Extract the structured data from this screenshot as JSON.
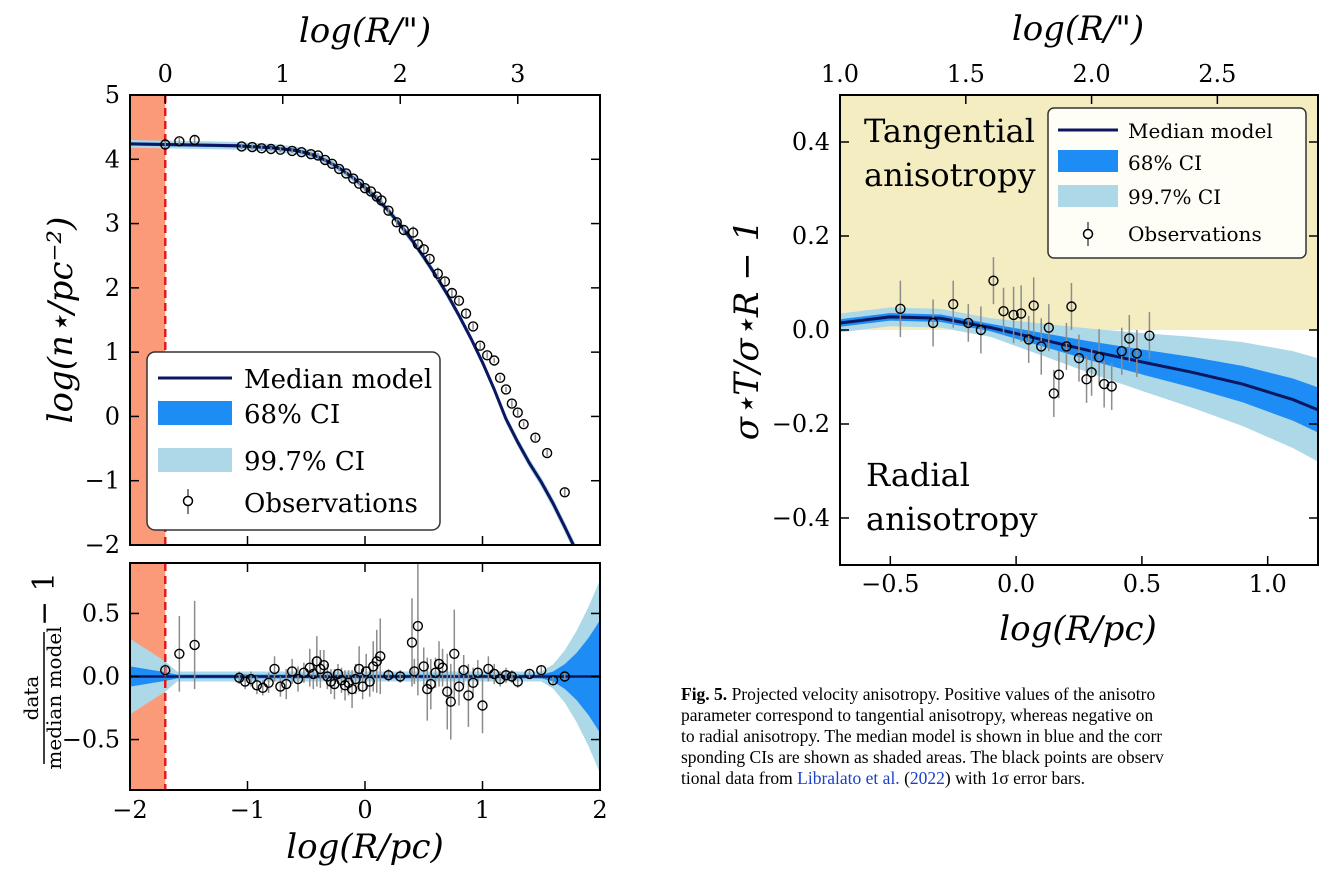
{
  "colors": {
    "median": "#0d1760",
    "ci68": "#1e8cf5",
    "ci997": "#acd8e7",
    "excluded": "#fa9a78",
    "cutline": "#e31a1c",
    "tangential": "#f4edc2",
    "errbar": "#8c8c8c"
  },
  "chart_data": [
    {
      "id": "surface-density",
      "type": "line",
      "ylabel": "log(n⋆/pc⁻²)",
      "x2label": "log(R/\")",
      "xlim": [
        -2,
        2
      ],
      "ylim": [
        -2,
        5
      ],
      "x2_offset": 1.7,
      "x_ticks": [
        -2,
        -1,
        0,
        1,
        2
      ],
      "x2_ticks": [
        0,
        1,
        2,
        3
      ],
      "y_ticks": [
        5,
        4,
        3,
        2,
        1,
        0,
        -1,
        -2
      ],
      "excluded_region": [
        -2,
        -1.7
      ],
      "cut_x": -1.7,
      "legend": {
        "placement": "lower-left",
        "entries": [
          "Median model",
          "68% CI",
          "99.7% CI",
          "Observations"
        ]
      },
      "series": [
        {
          "name": "Median model",
          "x": [
            -2,
            -1.7,
            -1.4,
            -1.1,
            -0.8,
            -0.6,
            -0.5,
            -0.4,
            -0.3,
            -0.2,
            -0.1,
            0,
            0.1,
            0.2,
            0.3,
            0.4,
            0.5,
            0.6,
            0.7,
            0.8,
            0.9,
            1.0,
            1.1,
            1.2,
            1.3,
            1.4,
            1.5,
            1.6,
            1.7,
            1.8
          ],
          "y": [
            4.24,
            4.23,
            4.22,
            4.21,
            4.18,
            4.14,
            4.1,
            4.04,
            3.95,
            3.84,
            3.71,
            3.56,
            3.39,
            3.2,
            2.98,
            2.74,
            2.48,
            2.2,
            1.9,
            1.57,
            1.22,
            0.84,
            0.42,
            -0.04,
            -0.4,
            -0.73,
            -1.02,
            -1.35,
            -1.72,
            -2.1
          ]
        }
      ],
      "observations": {
        "name": "Observations",
        "x": [
          -1.7,
          -1.58,
          -1.45,
          -1.05,
          -0.96,
          -0.88,
          -0.8,
          -0.72,
          -0.62,
          -0.54,
          -0.46,
          -0.4,
          -0.34,
          -0.28,
          -0.22,
          -0.16,
          -0.1,
          -0.05,
          0,
          0.05,
          0.1,
          0.14,
          0.2,
          0.27,
          0.33,
          0.41,
          0.45,
          0.5,
          0.55,
          0.62,
          0.68,
          0.74,
          0.8,
          0.86,
          0.92,
          0.98,
          1.04,
          1.1,
          1.15,
          1.2,
          1.25,
          1.3,
          1.35,
          1.45,
          1.55,
          1.7
        ],
        "y": [
          4.23,
          4.28,
          4.3,
          4.2,
          4.19,
          4.17,
          4.16,
          4.15,
          4.13,
          4.11,
          4.08,
          4.06,
          3.99,
          3.93,
          3.85,
          3.78,
          3.7,
          3.62,
          3.55,
          3.5,
          3.42,
          3.36,
          3.2,
          3.02,
          2.9,
          2.86,
          2.68,
          2.6,
          2.45,
          2.22,
          2.1,
          1.92,
          1.8,
          1.6,
          1.4,
          1.1,
          0.95,
          0.87,
          0.6,
          0.42,
          0.2,
          0.06,
          -0.12,
          -0.33,
          -0.57,
          -1.18
        ],
        "err": [
          0.06,
          0.05,
          0.08,
          0.04,
          0.04,
          0.04,
          0.03,
          0.04,
          0.03,
          0.03,
          0.03,
          0.04,
          0.03,
          0.03,
          0.03,
          0.03,
          0.03,
          0.03,
          0.05,
          0.04,
          0.03,
          0.04,
          0.06,
          0.08,
          0.07,
          0.1,
          0.08,
          0.07,
          0.05,
          0.1,
          0.06,
          0.07,
          0.05,
          0.06,
          0.05,
          0.05,
          0.05,
          0.04,
          0.04,
          0.04,
          0.05,
          0.05,
          0.04,
          0.05,
          0.05,
          0.06
        ]
      }
    },
    {
      "id": "residuals",
      "type": "line",
      "xlabel": "log(R/pc)",
      "ylabel": "data / median model − 1",
      "ylabel_num": "data",
      "ylabel_den": "median model",
      "ylabel_tail": "− 1",
      "xlim": [
        -2,
        2
      ],
      "ylim": [
        -0.9,
        0.9
      ],
      "x_ticks": [
        -2,
        -1,
        0,
        1,
        2
      ],
      "y_ticks": [
        0.5,
        0.0,
        -0.5
      ],
      "excluded_region": [
        -2,
        -1.7
      ],
      "cut_x": -1.7,
      "series": [
        {
          "name": "Median model",
          "x": [
            -2,
            2
          ],
          "y": [
            0,
            0
          ]
        }
      ],
      "observations": {
        "name": "Observations",
        "x": [
          -1.7,
          -1.58,
          -1.45,
          -1.07,
          -1.02,
          -0.97,
          -0.92,
          -0.87,
          -0.82,
          -0.77,
          -0.72,
          -0.67,
          -0.62,
          -0.57,
          -0.52,
          -0.47,
          -0.44,
          -0.41,
          -0.38,
          -0.35,
          -0.32,
          -0.29,
          -0.26,
          -0.23,
          -0.2,
          -0.17,
          -0.14,
          -0.11,
          -0.08,
          -0.05,
          -0.02,
          0.01,
          0.04,
          0.07,
          0.1,
          0.13,
          0.2,
          0.3,
          0.4,
          0.42,
          0.45,
          0.5,
          0.53,
          0.56,
          0.6,
          0.63,
          0.66,
          0.7,
          0.73,
          0.76,
          0.8,
          0.84,
          0.88,
          0.92,
          0.96,
          1.0,
          1.05,
          1.1,
          1.15,
          1.2,
          1.25,
          1.3,
          1.4,
          1.5,
          1.6,
          1.7
        ],
        "y": [
          0.05,
          0.18,
          0.25,
          -0.01,
          -0.04,
          -0.02,
          -0.07,
          -0.09,
          -0.05,
          0.06,
          -0.08,
          -0.06,
          0.04,
          -0.02,
          0.03,
          0.07,
          0.02,
          0.12,
          0.06,
          0.09,
          0.0,
          -0.04,
          -0.06,
          0.02,
          -0.03,
          -0.07,
          -0.05,
          -0.1,
          -0.02,
          0.06,
          -0.08,
          0.04,
          -0.04,
          0.08,
          0.12,
          0.16,
          0.01,
          0.0,
          0.27,
          0.04,
          0.4,
          0.08,
          -0.1,
          -0.06,
          0.03,
          0.1,
          0.07,
          -0.12,
          -0.2,
          0.18,
          -0.08,
          0.05,
          -0.15,
          -0.05,
          0.03,
          -0.23,
          0.06,
          0.02,
          -0.02,
          0.01,
          0.0,
          -0.04,
          0.02,
          0.05,
          -0.03,
          0.0
        ],
        "err": [
          0.05,
          0.3,
          0.35,
          0.05,
          0.06,
          0.06,
          0.07,
          0.06,
          0.08,
          0.1,
          0.08,
          0.12,
          0.1,
          0.1,
          0.08,
          0.15,
          0.12,
          0.2,
          0.15,
          0.12,
          0.1,
          0.1,
          0.12,
          0.08,
          0.1,
          0.12,
          0.1,
          0.15,
          0.12,
          0.18,
          0.1,
          0.14,
          0.12,
          0.2,
          0.25,
          0.3,
          0.05,
          0.05,
          0.35,
          0.1,
          0.55,
          0.15,
          0.25,
          0.2,
          0.12,
          0.18,
          0.15,
          0.3,
          0.3,
          0.35,
          0.15,
          0.12,
          0.25,
          0.12,
          0.1,
          0.22,
          0.1,
          0.08,
          0.06,
          0.06,
          0.05,
          0.05,
          0.04,
          0.04,
          0.04,
          0.03
        ]
      }
    },
    {
      "id": "anisotropy",
      "type": "line",
      "xlabel": "log(R/pc)",
      "ylabel": "σ⋆T/σ⋆R − 1",
      "x2label": "log(R/\")",
      "xlim": [
        -0.7,
        1.2
      ],
      "ylim": [
        -0.5,
        0.5
      ],
      "x2_offset": 1.7,
      "x_ticks": [
        -0.5,
        0.0,
        0.5,
        1.0
      ],
      "x2_ticks": [
        1.0,
        1.5,
        2.0,
        2.5
      ],
      "y_ticks": [
        0.4,
        0.2,
        0.0,
        -0.2,
        -0.4
      ],
      "regions": {
        "tangential_label_1": "Tangential",
        "tangential_label_2": "anisotropy",
        "radial_label_1": "Radial",
        "radial_label_2": "anisotropy"
      },
      "legend": {
        "placement": "upper-right",
        "entries": [
          "Median model",
          "68% CI",
          "99.7% CI",
          "Observations"
        ]
      },
      "series": [
        {
          "name": "Median model",
          "x": [
            -0.7,
            -0.5,
            -0.3,
            -0.1,
            0.1,
            0.3,
            0.5,
            0.7,
            0.9,
            1.1,
            1.2
          ],
          "y": [
            0.015,
            0.028,
            0.025,
            0.005,
            -0.02,
            -0.045,
            -0.068,
            -0.09,
            -0.115,
            -0.148,
            -0.17
          ]
        }
      ],
      "observations": {
        "name": "Observations",
        "x": [
          -0.46,
          -0.33,
          -0.25,
          -0.19,
          -0.14,
          -0.09,
          -0.05,
          -0.01,
          0.02,
          0.05,
          0.07,
          0.1,
          0.13,
          0.15,
          0.17,
          0.2,
          0.22,
          0.25,
          0.28,
          0.3,
          0.33,
          0.35,
          0.38,
          0.42,
          0.45,
          0.48,
          0.53
        ],
        "y": [
          0.045,
          0.015,
          0.055,
          0.015,
          0.0,
          0.105,
          0.04,
          0.032,
          0.035,
          -0.02,
          0.052,
          -0.035,
          0.005,
          -0.135,
          -0.095,
          -0.035,
          0.05,
          -0.06,
          -0.105,
          -0.09,
          -0.058,
          -0.115,
          -0.12,
          -0.045,
          -0.018,
          -0.05,
          -0.012
        ],
        "err": [
          0.06,
          0.05,
          0.05,
          0.04,
          0.05,
          0.05,
          0.05,
          0.06,
          0.06,
          0.05,
          0.06,
          0.06,
          0.05,
          0.05,
          0.05,
          0.05,
          0.05,
          0.05,
          0.05,
          0.05,
          0.06,
          0.05,
          0.05,
          0.05,
          0.05,
          0.05,
          0.05
        ]
      }
    }
  ],
  "caption": {
    "label": "Fig. 5.",
    "lines": [
      " Projected velocity anisotropy. Positive values of the anisotro",
      "parameter correspond to tangential anisotropy, whereas negative on",
      "to radial anisotropy. The median model is shown in blue and the corr",
      "sponding CIs are shown as shaded areas. The black points are observ"
    ],
    "line5_pre": "tional data from ",
    "link_author": "Libralato et al.",
    "link_open": " (",
    "link_year": "2022",
    "line5_post": ") with 1σ error bars."
  }
}
